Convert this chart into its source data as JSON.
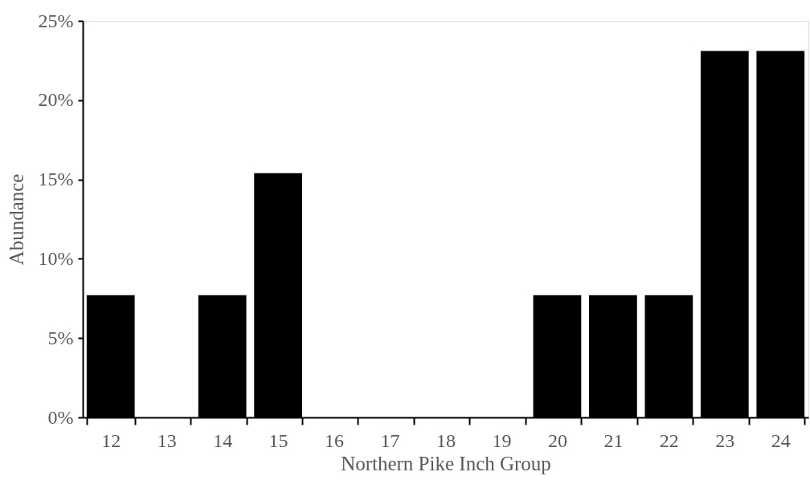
{
  "chart_data": {
    "type": "bar",
    "xlabel": "Northern Pike Inch Group",
    "ylabel": "Abundance",
    "categories": [
      "12",
      "13",
      "14",
      "15",
      "16",
      "17",
      "18",
      "19",
      "20",
      "21",
      "22",
      "23",
      "24"
    ],
    "values": [
      7.7,
      0,
      7.7,
      15.4,
      0,
      0,
      0,
      0,
      7.7,
      7.7,
      7.7,
      23.1,
      23.1
    ],
    "color": "#000000",
    "ylim": [
      0,
      25
    ],
    "yticks": [
      {
        "value": 0,
        "label": "0%"
      },
      {
        "value": 5,
        "label": "5%"
      },
      {
        "value": 10,
        "label": "10%"
      },
      {
        "value": 15,
        "label": "15%"
      },
      {
        "value": 20,
        "label": "20%"
      },
      {
        "value": 25,
        "label": "25%"
      }
    ],
    "grid": false
  }
}
